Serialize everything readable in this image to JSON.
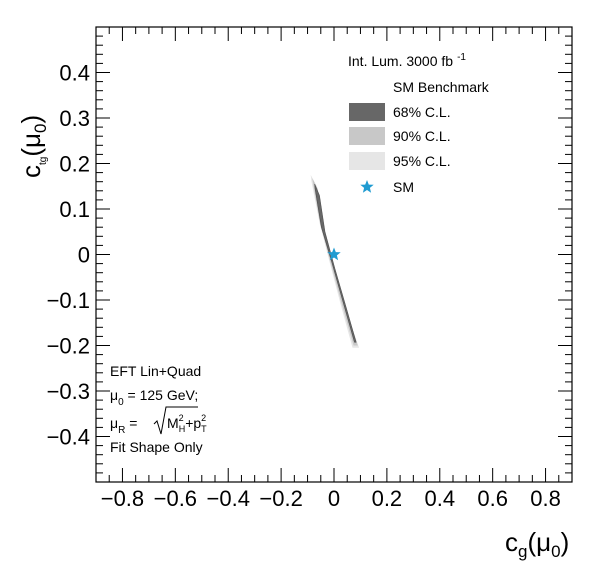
{
  "chart_data": {
    "type": "contour",
    "xlabel": {
      "main": "c",
      "sub": "g",
      "arg": "(μ",
      "arg_sub": "0",
      "close": ")"
    },
    "ylabel": {
      "main": "c",
      "sub": "tg",
      "arg": "(μ",
      "arg_sub": "0",
      "close": ")"
    },
    "xlim": [
      -0.9,
      0.9
    ],
    "ylim": [
      -0.5,
      0.5
    ],
    "xticks": [
      -0.8,
      -0.6,
      -0.4,
      -0.2,
      0,
      0.2,
      0.4,
      0.6,
      0.8
    ],
    "xtick_labels": [
      "−0.8",
      "−0.6",
      "−0.4",
      "−0.2",
      "0",
      "0.2",
      "0.4",
      "0.6",
      "0.8"
    ],
    "yticks": [
      -0.4,
      -0.3,
      -0.2,
      -0.1,
      0,
      0.1,
      0.2,
      0.3,
      0.4
    ],
    "ytick_labels": [
      "−0.4",
      "−0.3",
      "−0.2",
      "−0.1",
      "0",
      "0.1",
      "0.2",
      "0.3",
      "0.4"
    ],
    "legend": {
      "header_main": "Int. Lum. 3000 fb",
      "header_sup": "-1",
      "subheader": "SM Benchmark",
      "placement": "top-right",
      "entries": [
        {
          "label": "68% C.L.",
          "color": "#676767"
        },
        {
          "label": "90% C.L.",
          "color": "#c8c8c8"
        },
        {
          "label": "95% C.L.",
          "color": "#e6e6e6"
        },
        {
          "label": "SM",
          "color": "#1f9bd1",
          "marker": "star"
        }
      ]
    },
    "regions": [
      {
        "name": "95% C.L.",
        "color": "#e6e6e6",
        "polygon": [
          [
            -0.088,
            0.175
          ],
          [
            -0.065,
            0.15
          ],
          [
            -0.04,
            0.06
          ],
          [
            0.0,
            -0.03
          ],
          [
            0.05,
            -0.13
          ],
          [
            0.095,
            -0.205
          ],
          [
            0.07,
            -0.205
          ],
          [
            0.03,
            -0.12
          ],
          [
            -0.015,
            -0.02
          ],
          [
            -0.055,
            0.07
          ],
          [
            -0.085,
            0.16
          ]
        ]
      },
      {
        "name": "90% C.L.",
        "color": "#c8c8c8",
        "polygon": [
          [
            -0.082,
            0.168
          ],
          [
            -0.062,
            0.145
          ],
          [
            -0.038,
            0.058
          ],
          [
            0.002,
            -0.03
          ],
          [
            0.05,
            -0.128
          ],
          [
            0.09,
            -0.2
          ],
          [
            0.074,
            -0.2
          ],
          [
            0.034,
            -0.118
          ],
          [
            -0.012,
            -0.02
          ],
          [
            -0.052,
            0.068
          ],
          [
            -0.079,
            0.155
          ]
        ]
      },
      {
        "name": "68% C.L.",
        "color": "#676767",
        "polygon": [
          [
            -0.073,
            0.155
          ],
          [
            -0.055,
            0.13
          ],
          [
            -0.034,
            0.05
          ],
          [
            0.003,
            -0.03
          ],
          [
            0.048,
            -0.12
          ],
          [
            0.084,
            -0.193
          ],
          [
            0.077,
            -0.193
          ],
          [
            0.038,
            -0.112
          ],
          [
            -0.008,
            -0.018
          ],
          [
            -0.048,
            0.06
          ],
          [
            -0.072,
            0.145
          ]
        ]
      }
    ],
    "points": [
      {
        "name": "SM",
        "x": 0.0,
        "y": 0.0,
        "marker": "star",
        "color": "#1f9bd1"
      }
    ],
    "annotations": {
      "line1": "EFT Lin+Quad",
      "line2_mu": "μ",
      "line2_sub": "0",
      "line2_rest": " = 125 GeV;",
      "line3_mu": "μ",
      "line3_sub": "R",
      "line3_eq": " =",
      "line3_M": "M",
      "line3_M_sup": "2",
      "line3_M_sub": "H",
      "line3_plus": "+p",
      "line3_p_sup": "2",
      "line3_p_sub": "T",
      "line4": "Fit Shape Only"
    }
  }
}
